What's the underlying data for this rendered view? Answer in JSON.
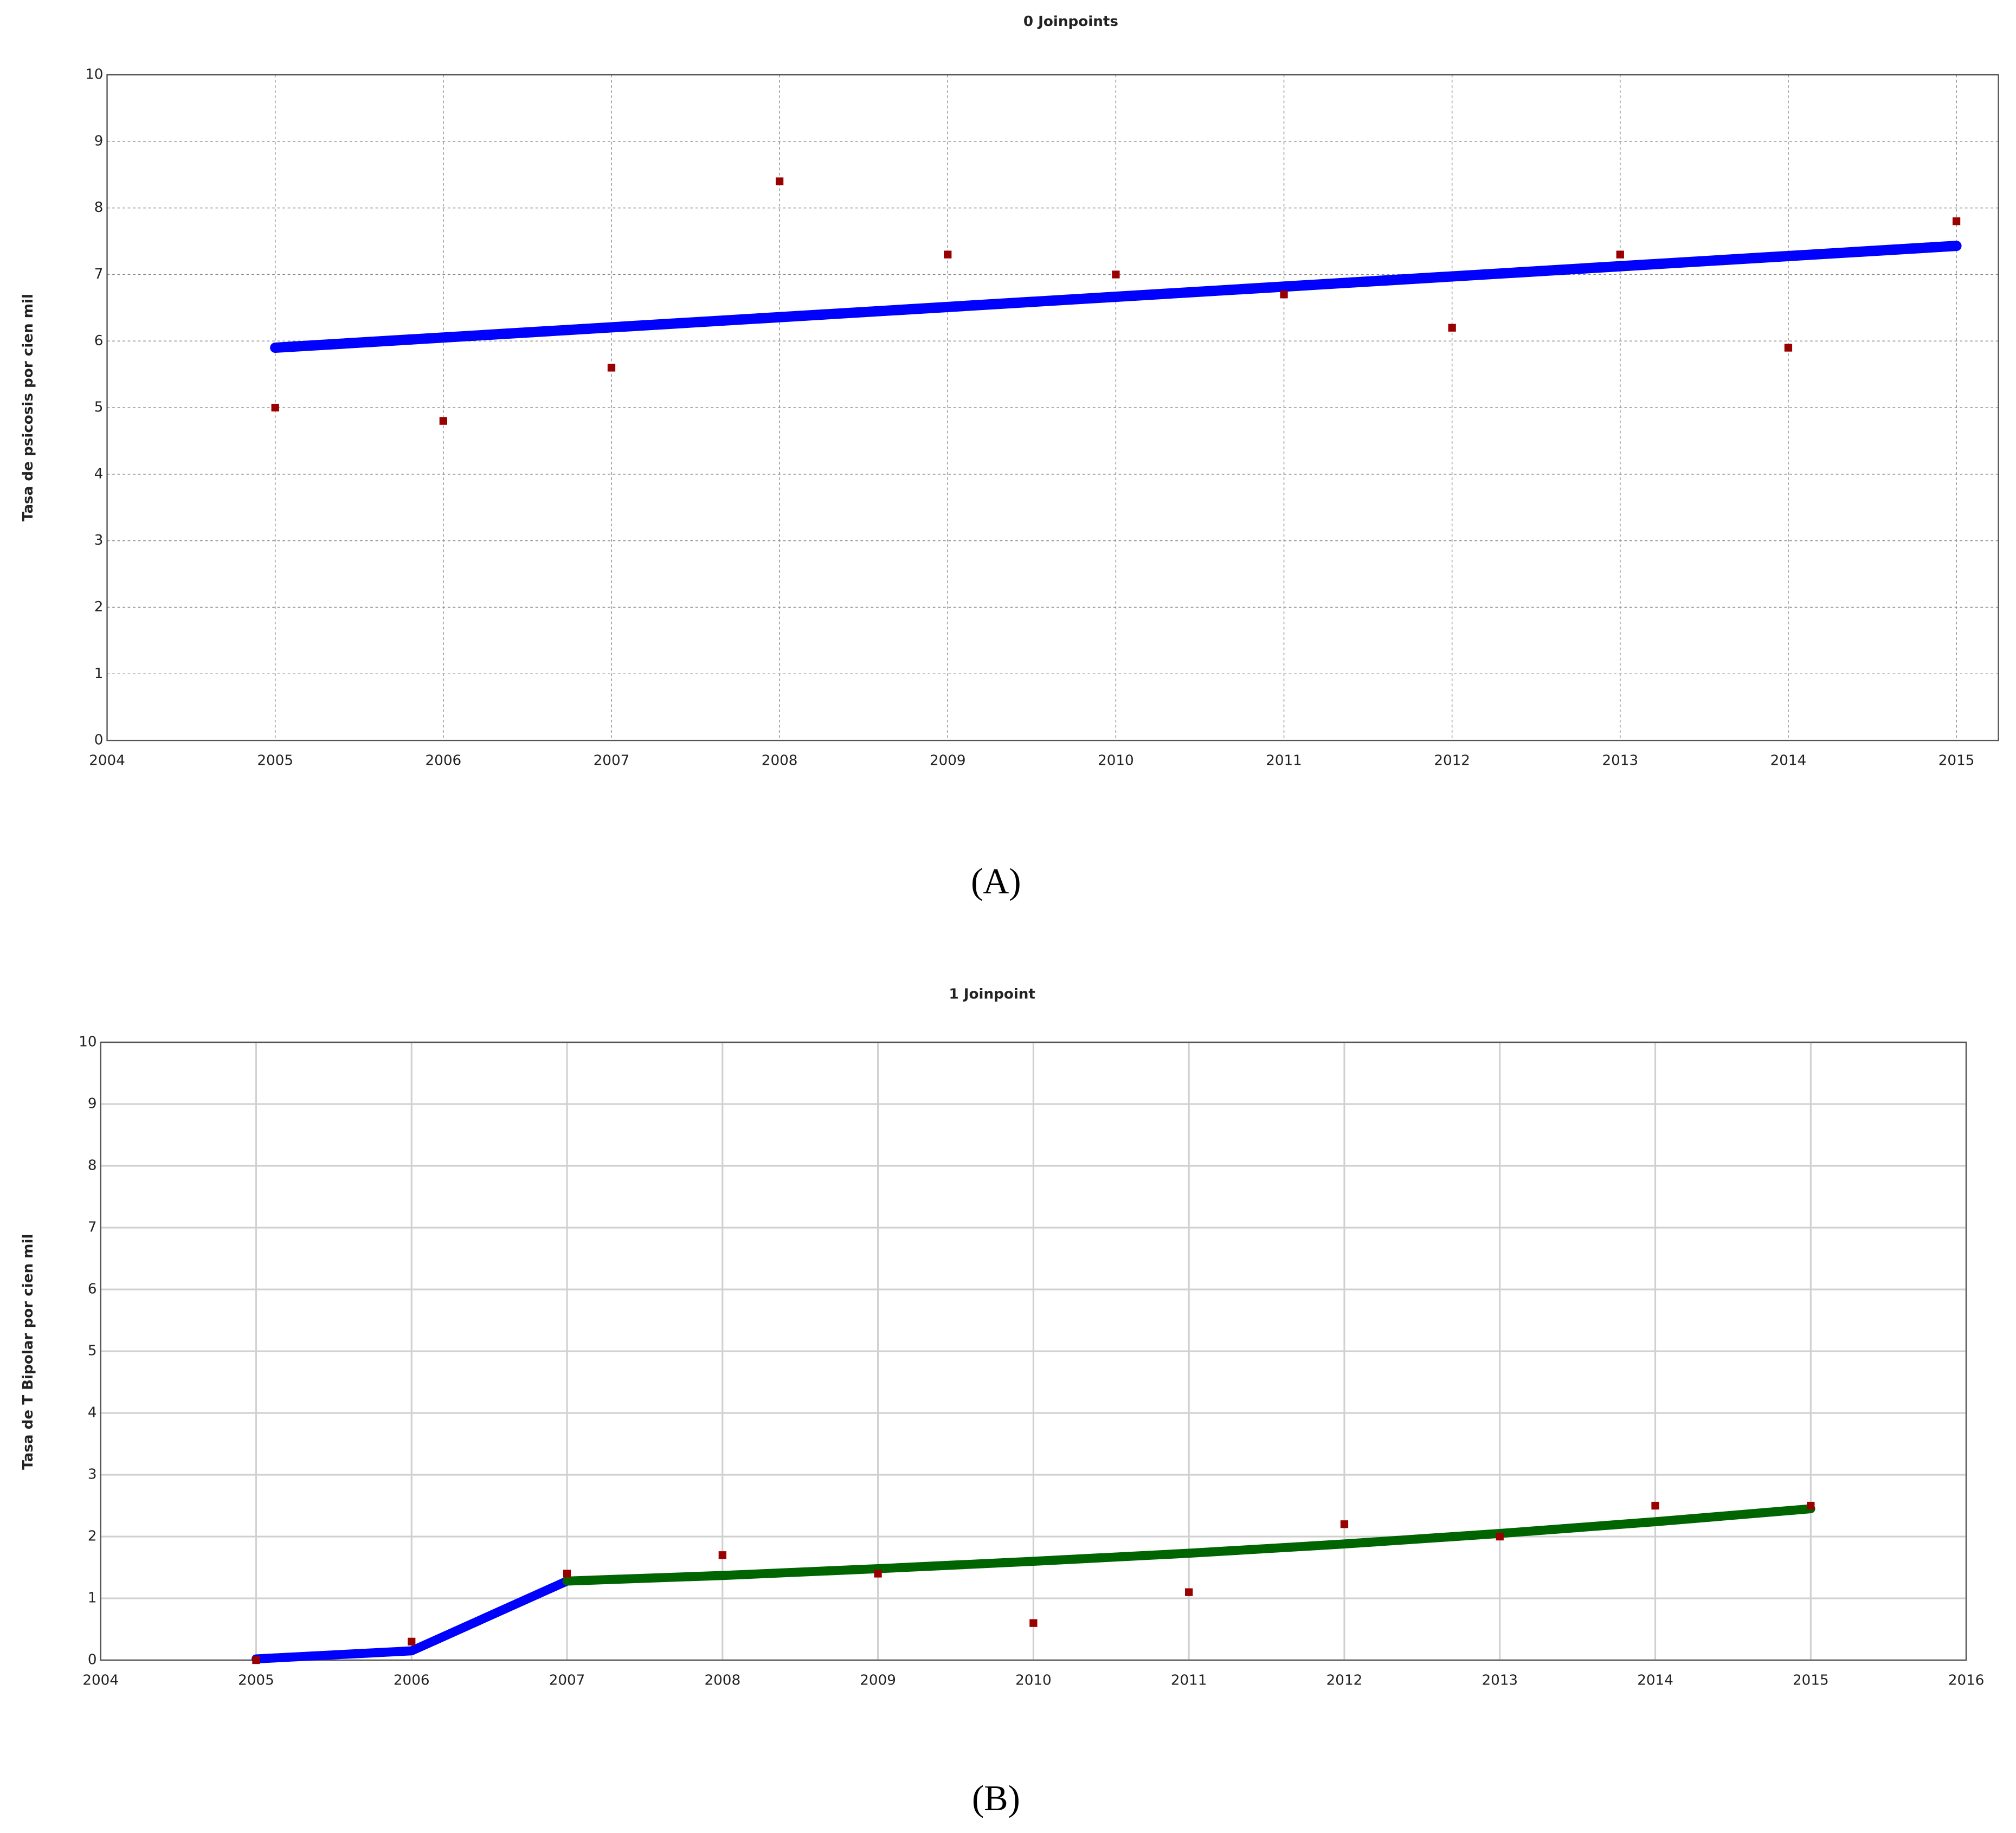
{
  "chart_data": [
    {
      "type": "line",
      "title": "0 Joinpoints",
      "y_label": "Tasa de psicosis por cien mil",
      "caption": "(A)",
      "xlim": [
        2004,
        2015.25
      ],
      "xticks": [
        2004,
        2005,
        2006,
        2007,
        2008,
        2009,
        2010,
        2011,
        2012,
        2013,
        2014,
        2015
      ],
      "ylim": [
        0,
        10
      ],
      "yticks": [
        0,
        1,
        2,
        3,
        4,
        5,
        6,
        7,
        8,
        9,
        10
      ],
      "grid": true,
      "grid_style": "dashed",
      "series": [
        {
          "mode": "markers",
          "color": "#990000",
          "x": [
            2005,
            2006,
            2007,
            2008,
            2009,
            2010,
            2011,
            2012,
            2013,
            2014,
            2015
          ],
          "values": [
            5.0,
            4.8,
            5.6,
            8.4,
            7.3,
            7.0,
            6.7,
            6.2,
            7.3,
            5.9,
            7.8
          ]
        },
        {
          "mode": "line",
          "color": "#0000ff",
          "x": [
            2005,
            2015
          ],
          "values": [
            5.9,
            7.43
          ]
        }
      ]
    },
    {
      "type": "line",
      "title": "1 Joinpoint",
      "y_label": "Tasa de T Bipolar por cien mil",
      "caption": "(B)",
      "xlim": [
        2004,
        2016
      ],
      "xticks": [
        2004,
        2005,
        2006,
        2007,
        2008,
        2009,
        2010,
        2011,
        2012,
        2013,
        2014,
        2015,
        2016
      ],
      "ylim": [
        0,
        10
      ],
      "yticks": [
        0,
        1,
        2,
        3,
        4,
        5,
        6,
        7,
        8,
        9,
        10
      ],
      "grid": true,
      "grid_style": "solid",
      "series": [
        {
          "mode": "markers",
          "color": "#990000",
          "x": [
            2005,
            2006,
            2007,
            2008,
            2009,
            2010,
            2011,
            2012,
            2013,
            2014,
            2015
          ],
          "values": [
            0.0,
            0.3,
            1.4,
            1.7,
            1.4,
            0.6,
            1.1,
            2.2,
            2.0,
            2.5,
            2.5
          ]
        },
        {
          "mode": "line",
          "color": "#0000ff",
          "x": [
            2005,
            2006,
            2007
          ],
          "values": [
            0.02,
            0.15,
            1.28
          ]
        },
        {
          "mode": "line",
          "color": "#006400",
          "x": [
            2007,
            2008,
            2009,
            2010,
            2011,
            2012,
            2013,
            2014,
            2015
          ],
          "values": [
            1.28,
            1.37,
            1.48,
            1.6,
            1.73,
            1.88,
            2.05,
            2.24,
            2.45
          ]
        }
      ]
    }
  ]
}
